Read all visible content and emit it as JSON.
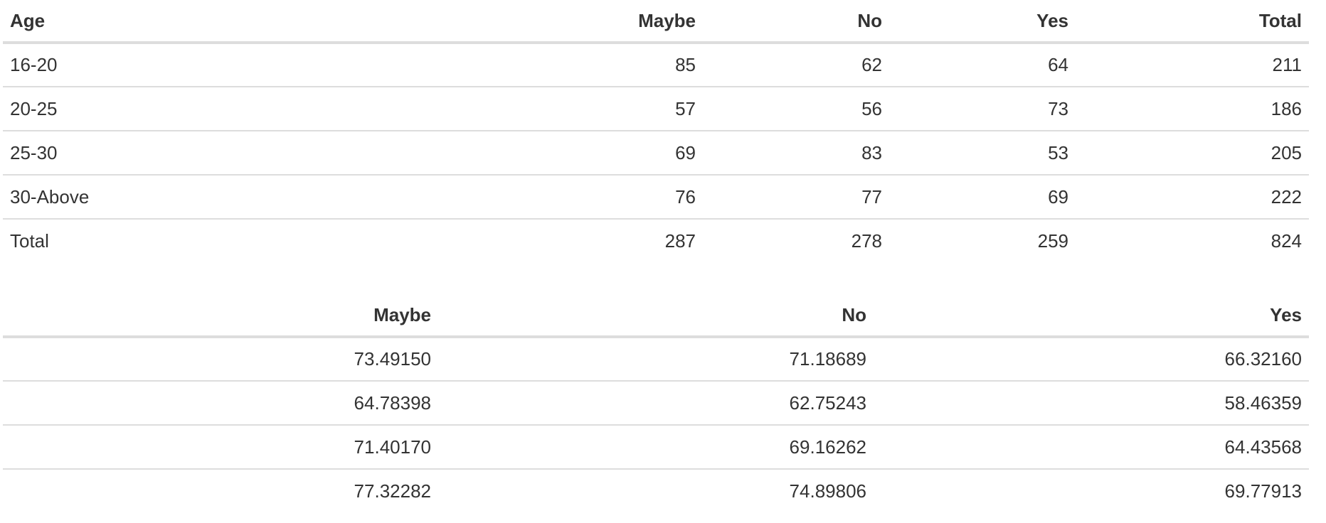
{
  "table1": {
    "headers": [
      "Age",
      "Maybe",
      "No",
      "Yes",
      "Total"
    ],
    "rows": [
      [
        "16-20",
        "85",
        "62",
        "64",
        "211"
      ],
      [
        "20-25",
        "57",
        "56",
        "73",
        "186"
      ],
      [
        "25-30",
        "69",
        "83",
        "53",
        "205"
      ],
      [
        "30-Above",
        "76",
        "77",
        "69",
        "222"
      ],
      [
        "Total",
        "287",
        "278",
        "259",
        "824"
      ]
    ]
  },
  "table2": {
    "headers": [
      "Maybe",
      "No",
      "Yes"
    ],
    "rows": [
      [
        "73.49150",
        "71.18689",
        "66.32160"
      ],
      [
        "64.78398",
        "62.75243",
        "58.46359"
      ],
      [
        "71.40170",
        "69.16262",
        "64.43568"
      ],
      [
        "77.32282",
        "74.89806",
        "69.77913"
      ]
    ]
  },
  "colors": {
    "text": "#333333",
    "rule": "#dddddd",
    "background": "#ffffff"
  }
}
